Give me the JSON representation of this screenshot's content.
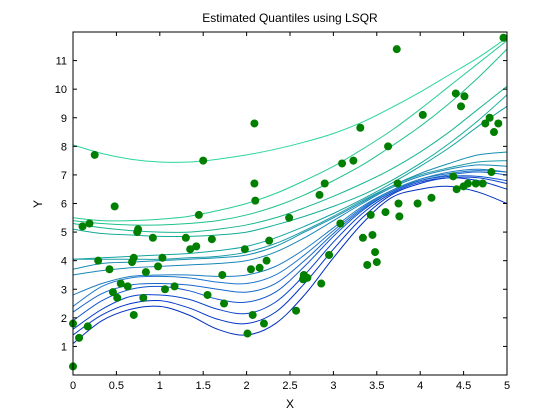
{
  "chart_data": {
    "type": "scatter",
    "title": "Estimated Quantiles using LSQR",
    "xlabel": "X",
    "ylabel": "Y",
    "xlim": [
      0,
      5
    ],
    "ylim": [
      0,
      12
    ],
    "xticks": [
      "0",
      "0.5",
      "1",
      "1.5",
      "2",
      "2.5",
      "3",
      "3.5",
      "4",
      "4.5",
      "5"
    ],
    "yticks": [
      "1",
      "2",
      "3",
      "4",
      "5",
      "6",
      "7",
      "8",
      "9",
      "10",
      "11"
    ],
    "grid": false,
    "points": {
      "color": "#007f00",
      "x": [
        0.0,
        0.0,
        0.07,
        0.11,
        0.17,
        0.19,
        0.25,
        0.29,
        0.42,
        0.46,
        0.48,
        0.51,
        0.55,
        0.63,
        0.68,
        0.7,
        0.7,
        0.74,
        0.75,
        0.81,
        0.84,
        0.92,
        0.98,
        1.03,
        1.06,
        1.17,
        1.3,
        1.35,
        1.42,
        1.45,
        1.5,
        1.55,
        1.6,
        1.72,
        1.74,
        1.98,
        2.01,
        2.05,
        2.07,
        2.09,
        2.09,
        2.1,
        2.15,
        2.2,
        2.23,
        2.26,
        2.49,
        2.57,
        2.65,
        2.66,
        2.7,
        2.84,
        2.86,
        2.9,
        2.95,
        3.08,
        3.1,
        3.23,
        3.31,
        3.34,
        3.39,
        3.43,
        3.45,
        3.48,
        3.5,
        3.6,
        3.63,
        3.73,
        3.74,
        3.75,
        3.76,
        3.97,
        4.03,
        4.13,
        4.38,
        4.41,
        4.42,
        4.47,
        4.5,
        4.51,
        4.55,
        4.64,
        4.72,
        4.75,
        4.8,
        4.82,
        4.85,
        4.9,
        4.96
      ],
      "y": [
        0.3,
        1.8,
        1.3,
        5.2,
        1.7,
        5.3,
        7.7,
        4.0,
        3.7,
        2.9,
        5.9,
        2.7,
        3.2,
        3.1,
        3.95,
        4.1,
        2.1,
        5.0,
        5.1,
        2.7,
        3.6,
        4.8,
        3.8,
        4.1,
        3.0,
        3.1,
        4.8,
        4.4,
        4.5,
        5.6,
        7.5,
        2.8,
        4.75,
        3.5,
        2.5,
        4.4,
        1.45,
        3.7,
        2.1,
        8.8,
        6.7,
        6.1,
        3.75,
        1.8,
        4.0,
        4.7,
        5.5,
        2.25,
        3.35,
        3.5,
        3.4,
        6.3,
        3.2,
        6.7,
        4.2,
        5.3,
        7.4,
        7.5,
        8.65,
        4.8,
        3.85,
        5.6,
        4.9,
        4.3,
        3.95,
        5.7,
        8.0,
        11.4,
        6.7,
        6.0,
        5.55,
        6.0,
        9.1,
        6.2,
        6.95,
        9.85,
        6.5,
        9.4,
        6.6,
        9.75,
        6.7,
        6.7,
        6.7,
        8.8,
        9.0,
        7.1,
        8.5,
        8.8,
        11.8
      ]
    },
    "series": [
      {
        "color": "#002fbf",
        "y": [
          1.1,
          1.9,
          2.3,
          2.4,
          2.1,
          1.6,
          1.4,
          1.8,
          2.8,
          4.1,
          5.3,
          6.2,
          6.5,
          6.6,
          6.4,
          6.0
        ]
      },
      {
        "color": "#0033c8",
        "y": [
          1.4,
          2.1,
          2.5,
          2.6,
          2.35,
          1.95,
          1.8,
          2.2,
          3.2,
          4.4,
          5.5,
          6.3,
          6.7,
          6.9,
          6.8,
          6.5
        ]
      },
      {
        "color": "#0a44cc",
        "y": [
          1.6,
          2.3,
          2.75,
          2.8,
          2.65,
          2.3,
          2.15,
          2.55,
          3.5,
          4.65,
          5.65,
          6.35,
          6.75,
          6.9,
          6.9,
          6.7
        ]
      },
      {
        "color": "#1155cc",
        "y": [
          1.9,
          2.6,
          3.0,
          3.1,
          2.95,
          2.65,
          2.55,
          2.9,
          3.8,
          4.85,
          5.75,
          6.4,
          6.8,
          6.95,
          6.95,
          6.8
        ]
      },
      {
        "color": "#1866cc",
        "y": [
          2.2,
          2.85,
          3.15,
          3.2,
          3.15,
          3.0,
          2.9,
          3.2,
          4.0,
          4.95,
          5.8,
          6.4,
          6.8,
          7.0,
          7.1,
          7.0
        ]
      },
      {
        "color": "#2076cc",
        "y": [
          2.4,
          3.1,
          3.4,
          3.45,
          3.4,
          3.25,
          3.2,
          3.5,
          4.2,
          5.05,
          5.85,
          6.45,
          6.85,
          7.05,
          7.15,
          7.1
        ]
      },
      {
        "color": "#1f7dc0",
        "y": [
          2.8,
          3.2,
          3.45,
          3.5,
          3.5,
          3.45,
          3.5,
          3.8,
          4.4,
          5.15,
          5.9,
          6.45,
          6.85,
          7.1,
          7.2,
          7.1
        ]
      },
      {
        "color": "#1a86b8",
        "y": [
          3.5,
          3.65,
          3.75,
          3.8,
          3.85,
          3.9,
          4.0,
          4.3,
          4.8,
          5.4,
          6.0,
          6.55,
          6.95,
          7.2,
          7.35,
          7.3
        ]
      },
      {
        "color": "#168fb0",
        "y": [
          3.7,
          3.9,
          3.95,
          4.0,
          4.05,
          4.1,
          4.2,
          4.5,
          5.0,
          5.5,
          6.05,
          6.6,
          7.05,
          7.4,
          7.7,
          7.8
        ]
      },
      {
        "color": "#1c9ca8",
        "y": [
          4.05,
          4.05,
          4.05,
          4.05,
          4.1,
          4.15,
          4.3,
          4.6,
          5.05,
          5.55,
          6.1,
          6.6,
          7.0,
          7.25,
          7.45,
          7.5
        ]
      },
      {
        "color": "#13a4a0",
        "y": [
          4.05,
          4.1,
          4.15,
          4.2,
          4.25,
          4.35,
          4.5,
          4.8,
          5.2,
          5.65,
          6.15,
          6.7,
          7.3,
          7.95,
          8.7,
          9.4
        ]
      },
      {
        "color": "#14ad98",
        "y": [
          5.1,
          4.95,
          4.9,
          4.85,
          4.85,
          4.9,
          5.0,
          5.25,
          5.55,
          5.9,
          6.3,
          6.8,
          7.4,
          8.1,
          8.9,
          9.8
        ]
      },
      {
        "color": "#17b790",
        "y": [
          5.3,
          5.15,
          5.05,
          5.0,
          5.0,
          5.1,
          5.25,
          5.5,
          5.85,
          6.25,
          6.7,
          7.2,
          7.8,
          8.5,
          9.3,
          10.1
        ]
      },
      {
        "color": "#1dc28a",
        "y": [
          5.4,
          5.3,
          5.25,
          5.25,
          5.3,
          5.4,
          5.6,
          5.9,
          6.3,
          6.8,
          7.35,
          8.0,
          8.7,
          9.5,
          10.4,
          11.4
        ]
      },
      {
        "color": "#27cd92",
        "y": [
          5.5,
          5.4,
          5.4,
          5.45,
          5.55,
          5.75,
          6.0,
          6.35,
          6.8,
          7.3,
          7.9,
          8.55,
          9.3,
          10.1,
          10.9,
          11.7
        ]
      },
      {
        "color": "#2bd6a0",
        "y": [
          8.05,
          7.75,
          7.55,
          7.45,
          7.45,
          7.55,
          7.7,
          7.9,
          8.15,
          8.45,
          8.85,
          9.35,
          9.9,
          10.5,
          11.1,
          11.8
        ]
      }
    ]
  }
}
